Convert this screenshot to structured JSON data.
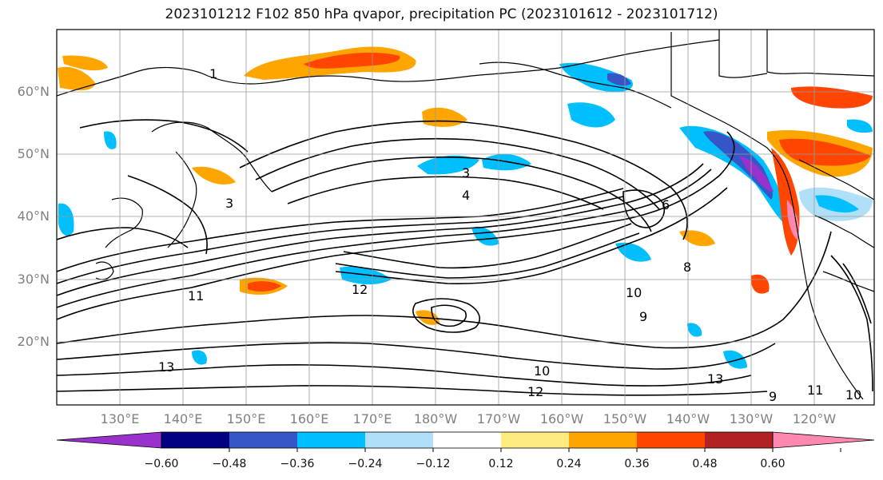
{
  "title": "2023101212 F102 850 hPa qvapor, precipitation PC (2023101612 - 2023101712)",
  "map": {
    "lat_labels": [
      "60°N",
      "50°N",
      "40°N",
      "30°N",
      "20°N"
    ],
    "lon_labels": [
      "130°E",
      "140°E",
      "150°E",
      "160°E",
      "170°E",
      "180°W",
      "170°W",
      "160°W",
      "150°W",
      "140°W",
      "130°W",
      "120°W"
    ],
    "contour_labels": [
      "1",
      "3",
      "3",
      "4",
      "6",
      "8",
      "9",
      "10",
      "10",
      "11",
      "12",
      "13",
      "13",
      "12",
      "11",
      "10",
      "9"
    ],
    "land_color": "#000000",
    "contour_color": "#000000"
  },
  "colorbar": {
    "colors": [
      "#9932cc",
      "#000080",
      "#3656c8",
      "#00bfff",
      "#b0e0f8",
      "#ffffff",
      "#ffec80",
      "#ffa500",
      "#ff4500",
      "#b22222",
      "#ff88b0"
    ],
    "ticks": [
      "−0.60",
      "−0.48",
      "−0.36",
      "−0.24",
      "−0.12",
      "0.12",
      "0.24",
      "0.36",
      "0.48",
      "0.60"
    ]
  }
}
